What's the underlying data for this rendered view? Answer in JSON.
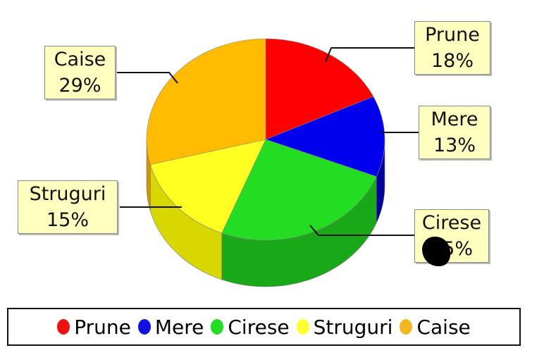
{
  "chart_data": {
    "type": "pie",
    "style": "3d",
    "slices": [
      {
        "name": "Prune",
        "value": 18,
        "label": "18%",
        "color": "#ff0000",
        "side": "#b00000"
      },
      {
        "name": "Mere",
        "value": 13,
        "label": "13%",
        "color": "#0000ee",
        "side": "#00009a"
      },
      {
        "name": "Cirese",
        "value": 25,
        "label": "25%",
        "color": "#22dd22",
        "side": "#18a818"
      },
      {
        "name": "Struguri",
        "value": 15,
        "label": "15%",
        "color": "#ffff22",
        "side": "#d8d800"
      },
      {
        "name": "Caise",
        "value": 29,
        "label": "29%",
        "color": "#ffbb00",
        "side": "#d09500"
      }
    ],
    "legend_position": "bottom"
  }
}
